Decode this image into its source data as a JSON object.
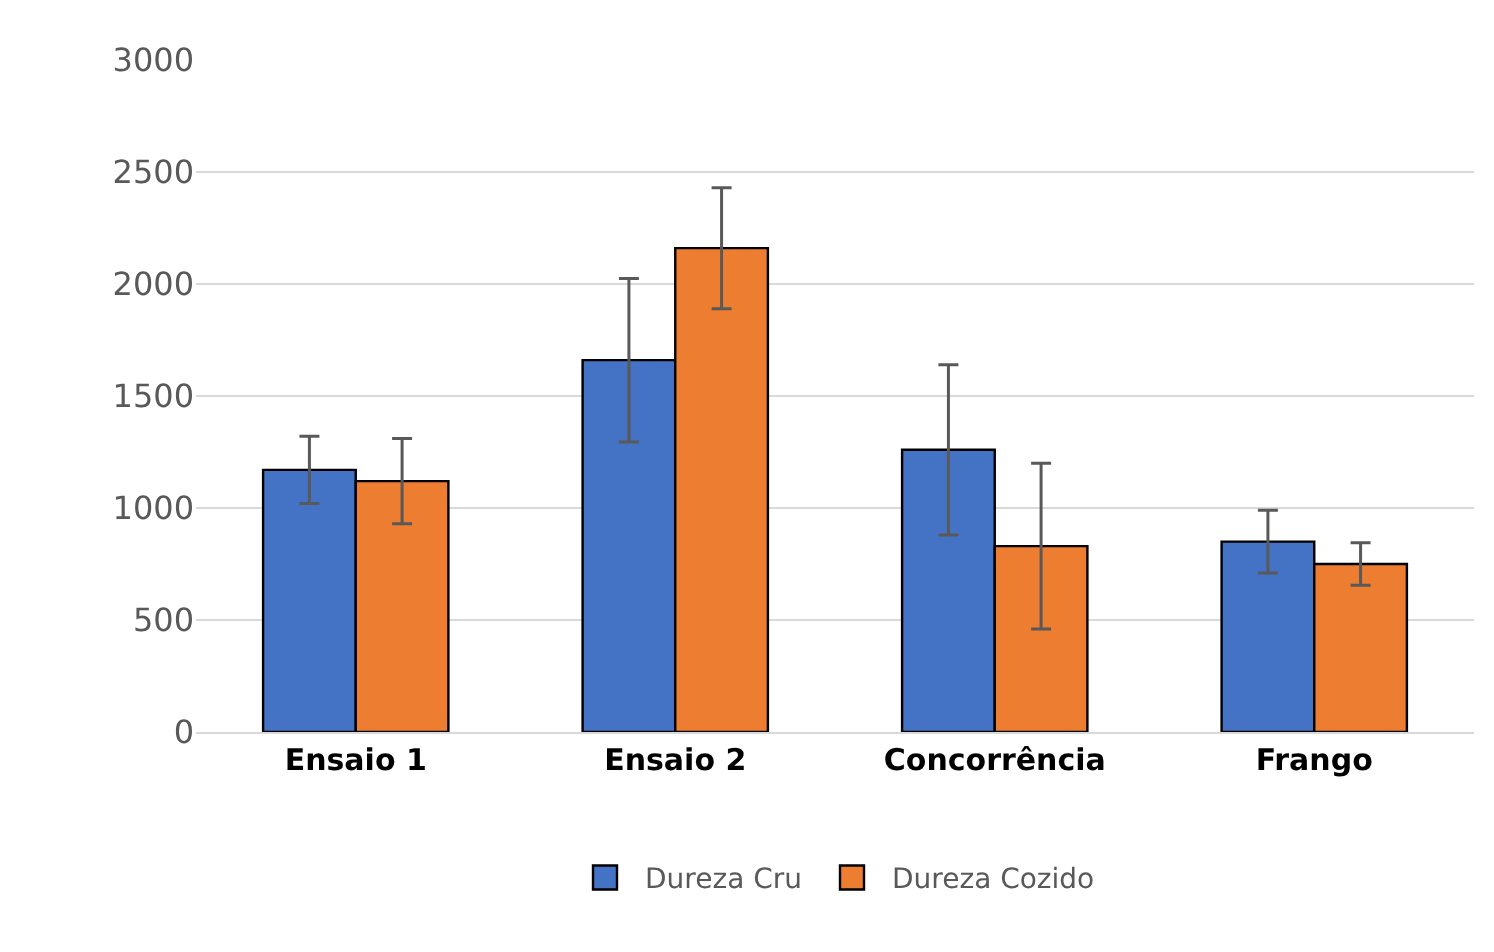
{
  "chart_data": {
    "type": "bar",
    "categories": [
      "Ensaio 1",
      "Ensaio 2",
      "Concorrência",
      "Frango"
    ],
    "series": [
      {
        "name": "Dureza Cru",
        "color": "#4472c4",
        "values": [
          1170,
          1660,
          1260,
          850
        ],
        "errors": [
          150,
          365,
          380,
          140
        ]
      },
      {
        "name": "Dureza Cozido",
        "color": "#ed7d31",
        "values": [
          1120,
          2160,
          830,
          750
        ],
        "errors": [
          190,
          270,
          370,
          95
        ]
      }
    ],
    "ylim": [
      0,
      3000
    ],
    "yticks": [
      0,
      500,
      1000,
      1500,
      2000,
      2500,
      3000
    ],
    "grid": "y",
    "legend": "bottom"
  }
}
